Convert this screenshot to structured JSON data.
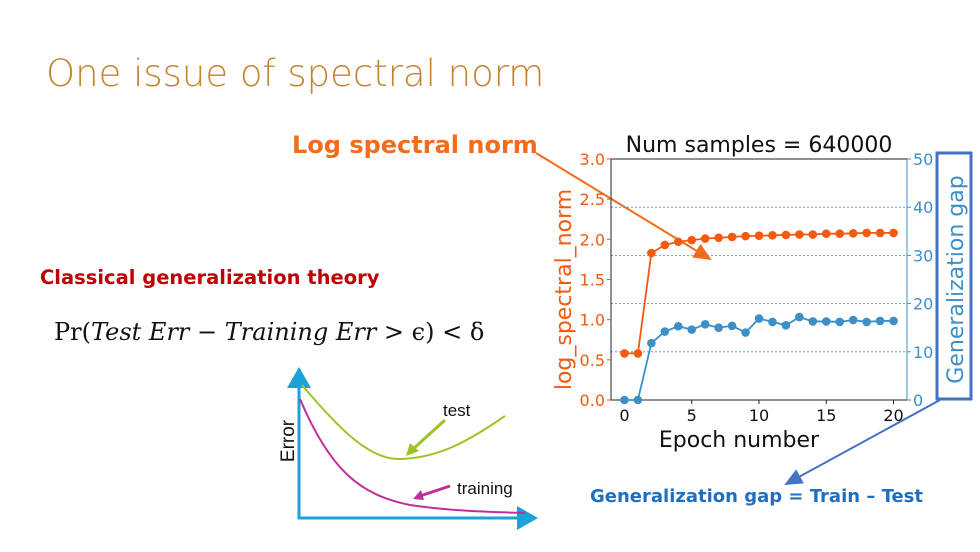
{
  "slide": {
    "title": "One issue of spectral norm",
    "log_spectral_norm_label": "Log spectral norm",
    "classical_heading": "Classical generalization theory",
    "formula": {
      "pr": "Pr(",
      "test": "Test Err",
      "minus": " −",
      "train": "Training Err",
      "rest": " > ϵ) < δ"
    },
    "gap_definition": "Generalization gap = Train – Test",
    "error_diagram": {
      "ylabel": "Error",
      "test_label": "test",
      "training_label": "training",
      "colors": {
        "axes": "#1aa3d8",
        "test": "#9dc326",
        "training": "#c02e9b"
      }
    }
  },
  "chart_data": {
    "type": "line",
    "title": "Num samples = 640000",
    "xlabel": "Epoch number",
    "ylabel": "log_spectral_norm",
    "y2label": "Generalization gap",
    "xlim": [
      -1,
      21
    ],
    "ylim": [
      0,
      3.0
    ],
    "y2lim": [
      0,
      50
    ],
    "xticks": [
      "0",
      "5",
      "10",
      "15",
      "20"
    ],
    "yticks": [
      "0.0",
      "0.5",
      "1.0",
      "1.5",
      "2.0",
      "2.5",
      "3.0"
    ],
    "y2ticks": [
      "0",
      "10",
      "20",
      "30",
      "40",
      "50"
    ],
    "grid": "dotted horizontal lines at right-axis ticks",
    "x": [
      0,
      1,
      2,
      3,
      4,
      5,
      6,
      7,
      8,
      9,
      10,
      11,
      12,
      13,
      14,
      15,
      16,
      17,
      18,
      19,
      20
    ],
    "series": [
      {
        "axis": "left",
        "color": "#f25a0f",
        "values": [
          0.58,
          0.58,
          1.83,
          1.93,
          1.97,
          1.99,
          2.01,
          2.02,
          2.03,
          2.04,
          2.045,
          2.05,
          2.055,
          2.06,
          2.06,
          2.07,
          2.07,
          2.075,
          2.08,
          2.08,
          2.08
        ]
      },
      {
        "axis": "right",
        "color": "#3d8fc6",
        "values": [
          0,
          0,
          11.8,
          14.2,
          15.3,
          14.6,
          15.7,
          15.0,
          15.4,
          14.0,
          16.9,
          16.2,
          15.5,
          17.2,
          16.3,
          16.3,
          16.2,
          16.6,
          16.2,
          16.4,
          16.4
        ]
      }
    ]
  }
}
